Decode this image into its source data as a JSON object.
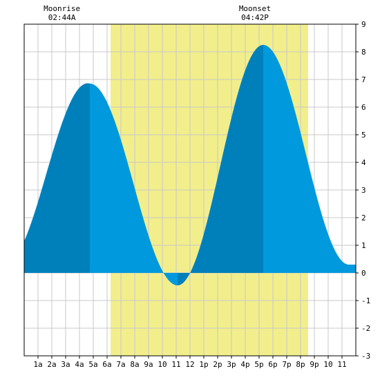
{
  "chart_data": {
    "type": "area",
    "title": "",
    "xlabel": "",
    "ylabel": "",
    "x_unit": "hour of day",
    "xlim": [
      0,
      24
    ],
    "ylim": [
      -3,
      9
    ],
    "grid": true,
    "x_tick_labels": [
      {
        "hour": 1,
        "label": "1a"
      },
      {
        "hour": 2,
        "label": "2a"
      },
      {
        "hour": 3,
        "label": "3a"
      },
      {
        "hour": 4,
        "label": "4a"
      },
      {
        "hour": 5,
        "label": "5a"
      },
      {
        "hour": 6,
        "label": "6a"
      },
      {
        "hour": 7,
        "label": "7a"
      },
      {
        "hour": 8,
        "label": "8a"
      },
      {
        "hour": 9,
        "label": "9a"
      },
      {
        "hour": 10,
        "label": "10"
      },
      {
        "hour": 11,
        "label": "11"
      },
      {
        "hour": 12,
        "label": "12"
      },
      {
        "hour": 13,
        "label": "1p"
      },
      {
        "hour": 14,
        "label": "2p"
      },
      {
        "hour": 15,
        "label": "3p"
      },
      {
        "hour": 16,
        "label": "4p"
      },
      {
        "hour": 17,
        "label": "5p"
      },
      {
        "hour": 18,
        "label": "6p"
      },
      {
        "hour": 19,
        "label": "7p"
      },
      {
        "hour": 20,
        "label": "8p"
      },
      {
        "hour": 21,
        "label": "9p"
      },
      {
        "hour": 22,
        "label": "10"
      },
      {
        "hour": 23,
        "label": "11"
      }
    ],
    "y_tick_labels": [
      "-3",
      "-2",
      "-1",
      "0",
      "1",
      "2",
      "3",
      "4",
      "5",
      "6",
      "7",
      "8",
      "9"
    ],
    "daylight": {
      "start_hour": 6.25,
      "end_hour": 20.55,
      "color": "#f2ee8b"
    },
    "moon_events": [
      {
        "label": "Moonrise",
        "time": "02:44A",
        "hour": 2.73
      },
      {
        "label": "Moonset",
        "time": "04:42P",
        "hour": 16.7
      }
    ],
    "extremes": [
      {
        "type": "high",
        "hour": 4.75,
        "value": 6.85
      },
      {
        "type": "low",
        "hour": 11.1,
        "value": -0.45
      },
      {
        "type": "high",
        "hour": 17.3,
        "value": 8.25
      }
    ],
    "tide_points": [
      {
        "hour": 0.0,
        "value": 1.15
      },
      {
        "hour": 24.0,
        "value": 0.3
      }
    ],
    "colors": {
      "tide_fill": "#0099dd",
      "tide_fill_dark": "#0080bb",
      "grid": "#c8c8c8",
      "axis": "#000000",
      "background": "#ffffff"
    }
  }
}
